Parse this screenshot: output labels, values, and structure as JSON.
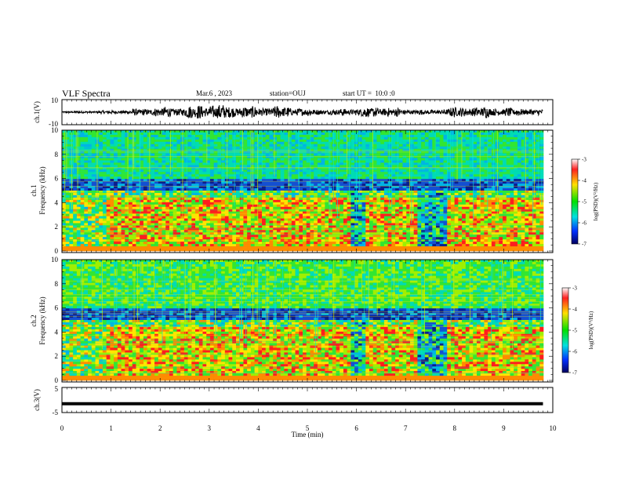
{
  "header": {
    "title": "VLF Spectra",
    "date": "Mar.6 , 2023",
    "station": "station=OUJ",
    "start": "start UT =  10:0 :0"
  },
  "chart_data": [
    {
      "type": "line",
      "panel": "waveform-ch1",
      "ylabel": "ch.1(V)",
      "ylim": [
        -10,
        10
      ],
      "yticks": [
        "10",
        "-10"
      ],
      "x": [
        0,
        0.5,
        1,
        1.5,
        2,
        2.5,
        3,
        3.5,
        4,
        4.5,
        5,
        5.5,
        6,
        6.5,
        7,
        7.5,
        8,
        8.5,
        9,
        9.5,
        9.8
      ],
      "amplitude_envelope_V": [
        1.0,
        1.2,
        1.5,
        3.0,
        4.5,
        5.0,
        7.5,
        6.0,
        5.0,
        5.5,
        3.5,
        2.5,
        4.0,
        5.0,
        3.0,
        2.0,
        4.5,
        5.0,
        4.0,
        3.5,
        2.5
      ]
    },
    {
      "type": "heatmap",
      "panel": "spectrogram-ch1",
      "ylabel": "ch.1",
      "ylabel2": "Frequency (kHz)",
      "ylim": [
        0,
        10
      ],
      "yticks": [
        "0",
        "2",
        "4",
        "6",
        "8",
        "10"
      ],
      "colorbar": {
        "label": "log(PSD)(V²/Hz)",
        "range": [
          -7,
          -3
        ],
        "ticks": [
          "-3",
          "-4",
          "-5",
          "-6",
          "-7"
        ]
      }
    },
    {
      "type": "heatmap",
      "panel": "spectrogram-ch2",
      "ylabel": "ch.2",
      "ylabel2": "Frequency (kHz)",
      "ylim": [
        0,
        10
      ],
      "yticks": [
        "0",
        "2",
        "4",
        "6",
        "8",
        "10"
      ],
      "colorbar": {
        "label": "log(PSD)(V²/Hz)",
        "range": [
          -7,
          -3
        ],
        "ticks": [
          "-3",
          "-4",
          "-5",
          "-6",
          "-7"
        ]
      }
    },
    {
      "type": "line",
      "panel": "waveform-ch3",
      "ylabel": "ch.3(V)",
      "ylim": [
        -5,
        5
      ],
      "yticks": [
        "5",
        "-5"
      ],
      "x": [
        0,
        9.8
      ],
      "y": [
        -1.5,
        -1.5
      ]
    }
  ],
  "xaxis": {
    "label": "Time (min)",
    "xlim": [
      0,
      10
    ],
    "ticks": [
      "0",
      "1",
      "2",
      "3",
      "4",
      "5",
      "6",
      "7",
      "8",
      "9",
      "10"
    ]
  }
}
